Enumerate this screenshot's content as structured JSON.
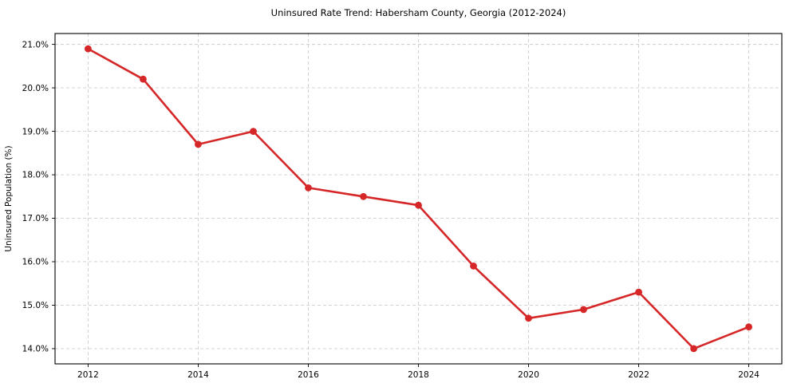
{
  "figure": {
    "background": "#ffffff"
  },
  "chart_data": {
    "type": "line",
    "title": "Uninsured Rate Trend: Habersham County, Georgia (2012-2024)",
    "ylabel": "Uninsured Population (%)",
    "x": [
      2012,
      2013,
      2014,
      2015,
      2016,
      2017,
      2018,
      2019,
      2020,
      2021,
      2022,
      2023,
      2024
    ],
    "values": [
      20.9,
      20.2,
      18.7,
      19.0,
      17.7,
      17.5,
      17.3,
      15.9,
      14.7,
      14.9,
      15.3,
      14.0,
      14.5
    ],
    "xlim": [
      2011.4,
      2024.6
    ],
    "ylim": [
      13.65,
      21.25
    ],
    "xticks": [
      2012,
      2014,
      2016,
      2018,
      2020,
      2022,
      2024
    ],
    "xtick_labels": [
      "2012",
      "2014",
      "2016",
      "2018",
      "2020",
      "2022",
      "2024"
    ],
    "yticks": [
      14,
      15,
      16,
      17,
      18,
      19,
      20,
      21
    ],
    "ytick_labels": [
      "14.0%",
      "15.0%",
      "16.0%",
      "17.0%",
      "18.0%",
      "19.0%",
      "20.0%",
      "21.0%"
    ],
    "grid": true,
    "grid_linestyle": "dashed",
    "legend_position": "none",
    "marker": "circle",
    "colors": {
      "line": "#d62728",
      "marker": "#d62728",
      "grid": "#cccccc",
      "spine": "#000000",
      "tick_text": "#000000",
      "title_text": "#000000"
    }
  }
}
